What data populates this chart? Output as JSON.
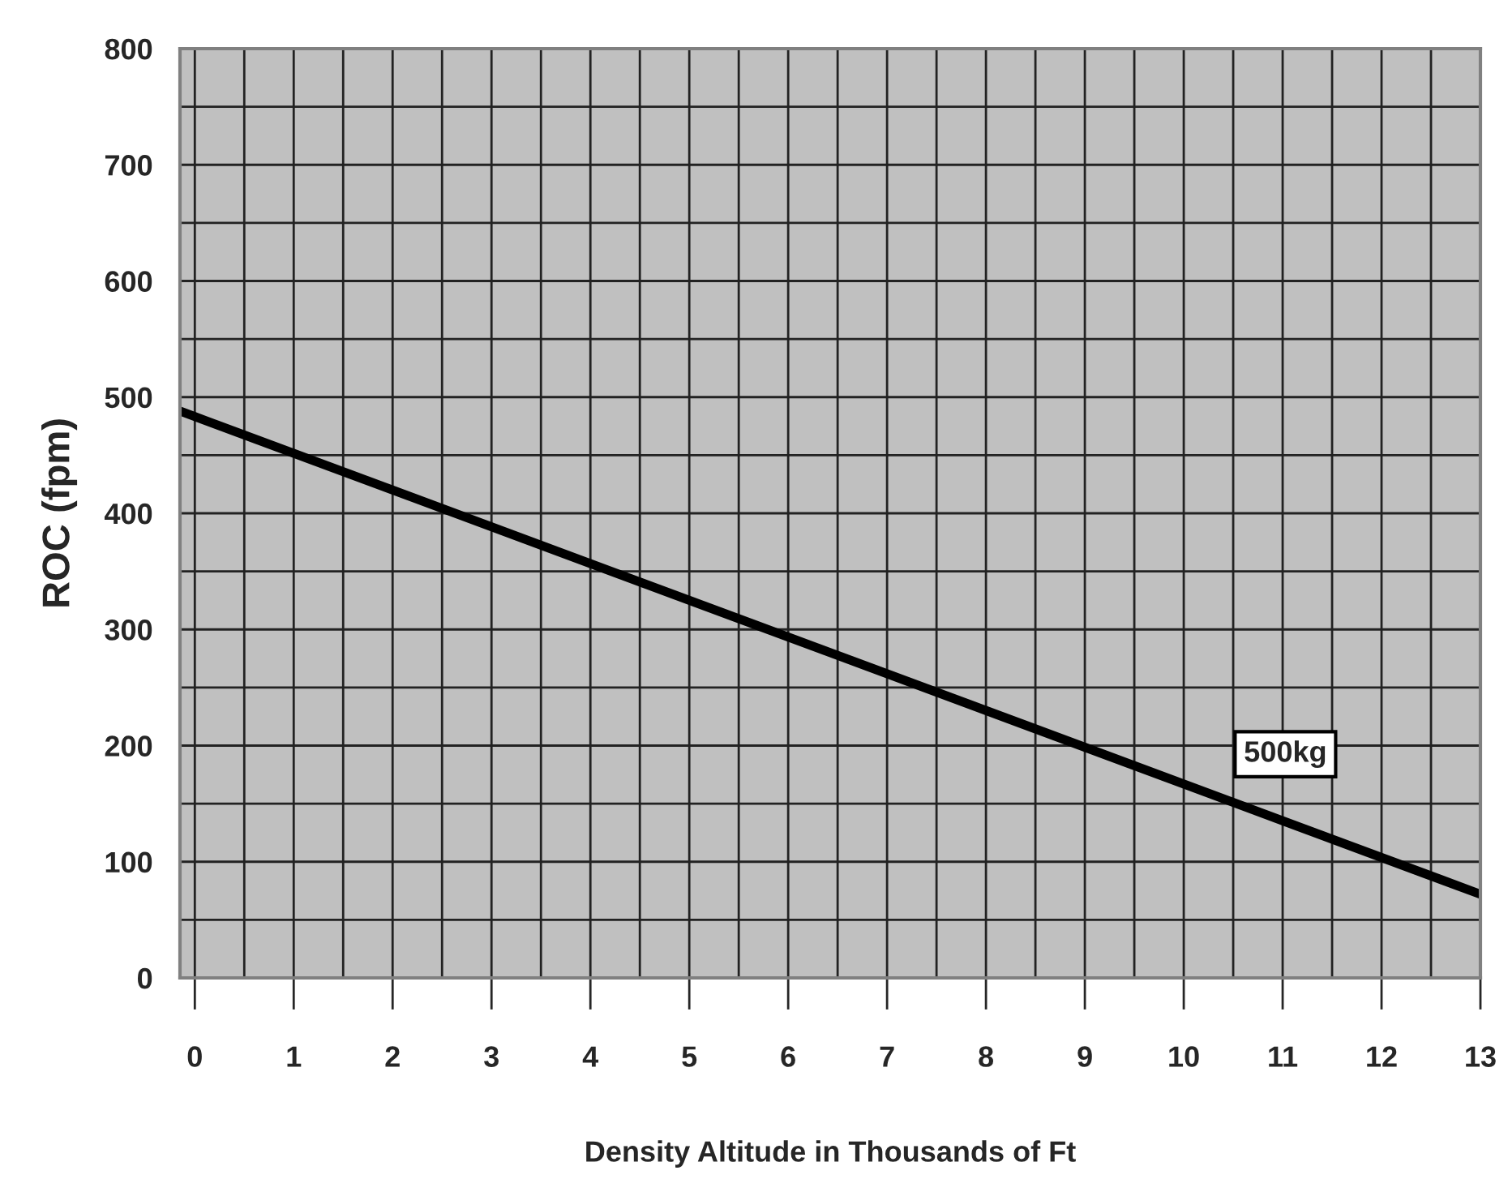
{
  "chart_data": {
    "type": "line",
    "xlabel": "Density Altitude in Thousands of Ft",
    "ylabel": "ROC (fpm)",
    "x": [
      -0.15,
      13
    ],
    "series": [
      {
        "name": "500kg",
        "color": "#000000",
        "values": [
          488,
          72
        ]
      }
    ],
    "xlim": [
      -0.15,
      13
    ],
    "ylim": [
      0,
      800
    ],
    "xticks": [
      0,
      {
        "value": 0.5,
        "label": null
      },
      1,
      {
        "value": 1.5,
        "label": null
      },
      2,
      {
        "value": 2.5,
        "label": null
      },
      3,
      {
        "value": 3.5,
        "label": null
      },
      4,
      {
        "value": 4.5,
        "label": null
      },
      5,
      {
        "value": 5.5,
        "label": null
      },
      6,
      {
        "value": 6.5,
        "label": null
      },
      7,
      {
        "value": 7.5,
        "label": null
      },
      8,
      {
        "value": 8.5,
        "label": null
      },
      9,
      {
        "value": 9.5,
        "label": null
      },
      10,
      {
        "value": 10.5,
        "label": null
      },
      11,
      {
        "value": 11.5,
        "label": null
      },
      12,
      {
        "value": 12.5,
        "label": null
      },
      13
    ],
    "yticks": [
      0,
      {
        "value": 50,
        "label": null
      },
      100,
      {
        "value": 150,
        "label": null
      },
      200,
      {
        "value": 250,
        "label": null
      },
      300,
      {
        "value": 350,
        "label": null
      },
      400,
      {
        "value": 450,
        "label": null
      },
      500,
      {
        "value": 550,
        "label": null
      },
      600,
      {
        "value": 650,
        "label": null
      },
      700,
      {
        "value": 750,
        "label": null
      },
      800
    ],
    "grid": true,
    "legend": false,
    "line_style": "solid",
    "marker": "none"
  }
}
